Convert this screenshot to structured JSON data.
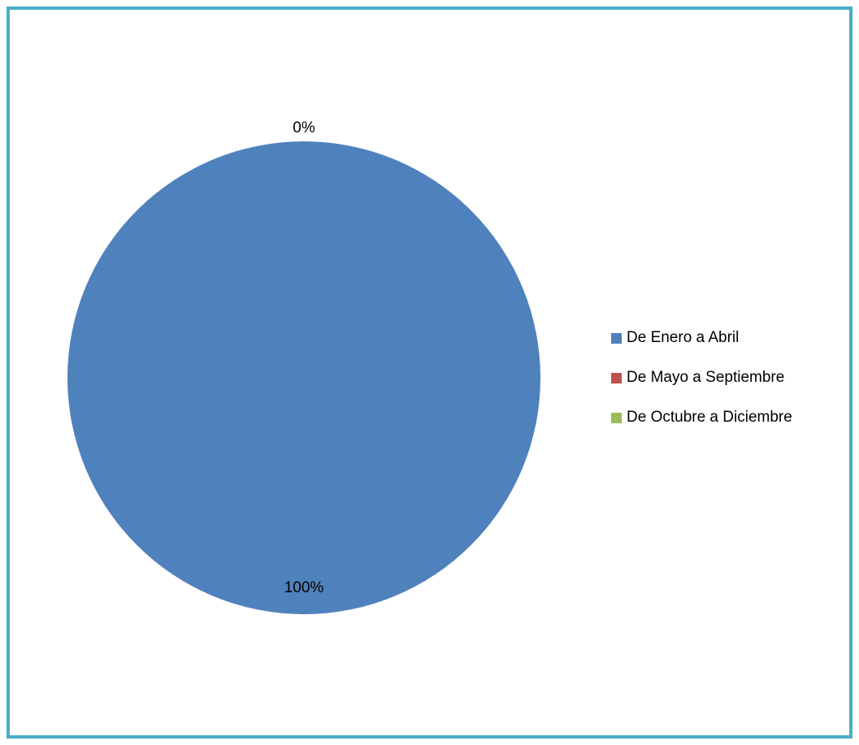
{
  "chart_data": {
    "type": "pie",
    "categories": [
      "De Enero a Abril",
      "De Mayo a Septiembre",
      "De Octubre a Diciembre"
    ],
    "values": [
      100,
      0,
      0
    ],
    "data_labels": [
      "100%",
      "0%",
      "0%"
    ],
    "colors": [
      "#4f81bd",
      "#c0504d",
      "#9bbb59"
    ],
    "frame_color": "#4bacc6",
    "legend_position": "right",
    "legend": [
      {
        "label": "De Enero a Abril",
        "color": "#4f81bd"
      },
      {
        "label": "De Mayo a Septiembre",
        "color": "#c0504d"
      },
      {
        "label": "De Octubre a Diciembre",
        "color": "#9bbb59"
      }
    ]
  }
}
